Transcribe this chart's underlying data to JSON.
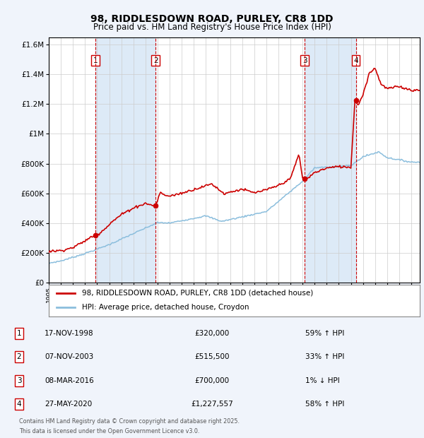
{
  "title": "98, RIDDLESDOWN ROAD, PURLEY, CR8 1DD",
  "subtitle": "Price paid vs. HM Land Registry's House Price Index (HPI)",
  "legend_line1": "98, RIDDLESDOWN ROAD, PURLEY, CR8 1DD (detached house)",
  "legend_line2": "HPI: Average price, detached house, Croydon",
  "footer1": "Contains HM Land Registry data © Crown copyright and database right 2025.",
  "footer2": "This data is licensed under the Open Government Licence v3.0.",
  "transactions": [
    {
      "num": 1,
      "date": "17-NOV-1998",
      "price": "£320,000",
      "pct": "59%",
      "dir": "↑",
      "year": 1998.88,
      "price_val": 320000
    },
    {
      "num": 2,
      "date": "07-NOV-2003",
      "price": "£515,500",
      "pct": "33%",
      "dir": "↑",
      "year": 2003.85,
      "price_val": 515500
    },
    {
      "num": 3,
      "date": "08-MAR-2016",
      "price": "£700,000",
      "pct": "1%",
      "dir": "↓",
      "year": 2016.18,
      "price_val": 700000
    },
    {
      "num": 4,
      "date": "27-MAY-2020",
      "price": "£1,227,557",
      "pct": "58%",
      "dir": "↑",
      "year": 2020.41,
      "price_val": 1227557
    }
  ],
  "bg_color": "#f0f4fb",
  "plot_bg": "#ffffff",
  "red_color": "#cc0000",
  "blue_color": "#8bbedd",
  "shaded_color": "#ddeaf7",
  "grid_color": "#cccccc",
  "ylim": [
    0,
    1650000
  ],
  "xlim_start": 1995.0,
  "xlim_end": 2025.7,
  "yticks": [
    0,
    200000,
    400000,
    600000,
    800000,
    1000000,
    1200000,
    1400000,
    1600000
  ]
}
